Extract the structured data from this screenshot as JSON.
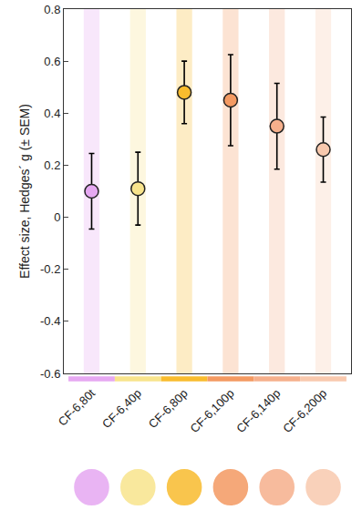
{
  "chart_data": {
    "type": "scatter",
    "y_label": "Effect size, Hedges´ g (± SEM)",
    "categories": [
      "CF-6,80t",
      "CF-6,40p",
      "CF-6,80p",
      "CF-6,100p",
      "CF-6,140p",
      "CF-6,200p"
    ],
    "values": [
      0.1,
      0.11,
      0.48,
      0.45,
      0.35,
      0.26
    ],
    "error": [
      0.145,
      0.14,
      0.12,
      0.175,
      0.165,
      0.125
    ],
    "colors": [
      "#e6a8f2",
      "#f8e48c",
      "#f9bc2e",
      "#f49a62",
      "#f6b08c",
      "#f9c9ae"
    ],
    "marker": "circle",
    "ylim": [
      -0.6,
      0.8
    ],
    "yticks": [
      -0.6,
      -0.4,
      -0.2,
      0,
      0.2,
      0.4,
      0.6,
      0.8
    ],
    "grid": false
  }
}
